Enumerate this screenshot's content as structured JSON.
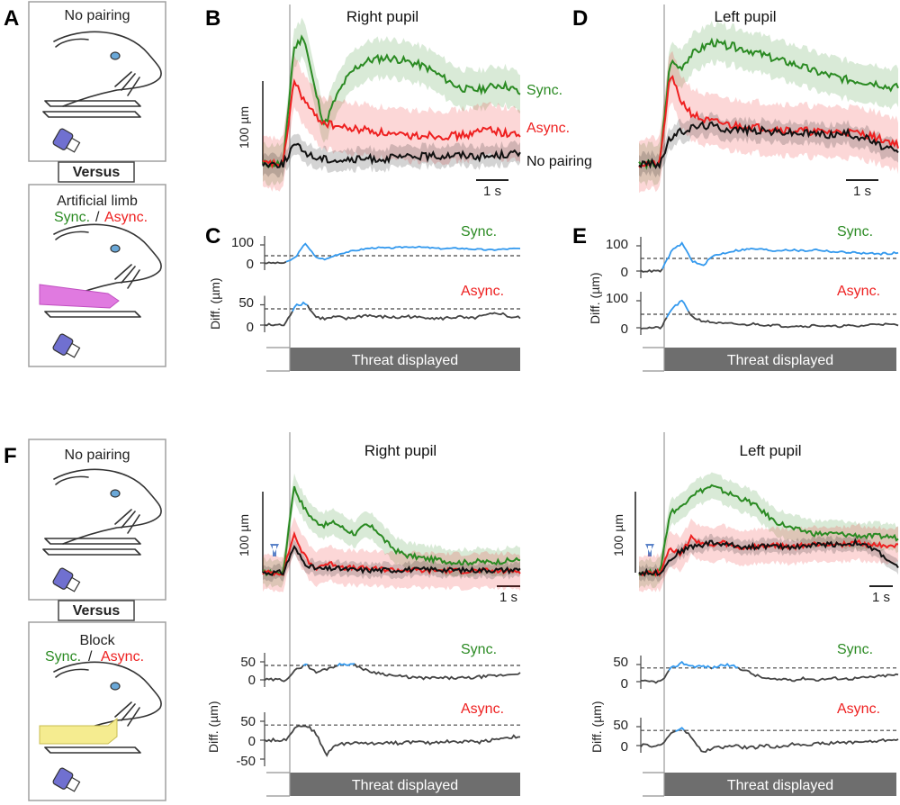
{
  "panel_letters": {
    "A": "A",
    "B": "B",
    "C": "C",
    "D": "D",
    "E": "E",
    "F": "F"
  },
  "schematic_top": {
    "no_pairing": "No pairing",
    "versus": "Versus",
    "condition_label": "Artificial limb",
    "sync": "Sync.",
    "slash": "/",
    "async": "Async."
  },
  "schematic_bottom": {
    "no_pairing": "No pairing",
    "versus": "Versus",
    "condition_label": "Block",
    "sync": "Sync.",
    "slash": "/",
    "async": "Async."
  },
  "colors": {
    "sync": "#2a8a22",
    "async": "#ee2020",
    "no_pairing": "#111111",
    "diff_signif": "#3399ee",
    "threat_bar": "#6e6e6e",
    "limb": "#e07ae0",
    "block": "#f5ec90"
  },
  "common_labels": {
    "scale_100um": "100 µm",
    "scale_1s": "1 s",
    "diff_ylabel": "Diff. (µm)",
    "threat": "Threat displayed"
  },
  "chart_data": [
    {
      "id": "B",
      "type": "line",
      "title": "Right pupil",
      "series": [
        {
          "name": "Sync.",
          "color": "#2a8a22",
          "values": [
            0,
            0,
            0,
            0.9,
            1.0,
            0.6,
            0.3,
            0.5,
            0.65,
            0.75,
            0.8,
            0.82,
            0.83,
            0.82,
            0.8,
            0.78,
            0.75,
            0.7,
            0.65,
            0.6,
            0.58,
            0.58,
            0.6,
            0.62,
            0.6,
            0.55
          ]
        },
        {
          "name": "Async.",
          "color": "#ee2020",
          "values": [
            0,
            0,
            0,
            0.65,
            0.5,
            0.38,
            0.32,
            0.3,
            0.28,
            0.27,
            0.27,
            0.25,
            0.24,
            0.22,
            0.22,
            0.22,
            0.23,
            0.22,
            0.22,
            0.22,
            0.23,
            0.25,
            0.28,
            0.25,
            0.23,
            0.24
          ]
        },
        {
          "name": "No pairing",
          "color": "#111111",
          "values": [
            0,
            0,
            0,
            0.15,
            0.1,
            0.05,
            0.04,
            0.03,
            0.03,
            0.03,
            0.04,
            0.04,
            0.04,
            0.05,
            0.05,
            0.06,
            0.06,
            0.06,
            0.07,
            0.07,
            0.07,
            0.06,
            0.06,
            0.07,
            0.08,
            0.08
          ]
        }
      ]
    },
    {
      "id": "D",
      "type": "line",
      "title": "Left pupil",
      "series": [
        {
          "name": "Sync.",
          "color": "#2a8a22",
          "values": [
            0,
            0,
            0,
            0.8,
            0.75,
            0.85,
            0.9,
            0.95,
            0.93,
            0.92,
            0.9,
            0.88,
            0.85,
            0.82,
            0.8,
            0.78,
            0.75,
            0.72,
            0.7,
            0.68,
            0.66,
            0.65,
            0.64,
            0.63,
            0.6,
            0.6
          ]
        },
        {
          "name": "Async.",
          "color": "#ee2020",
          "values": [
            0,
            0,
            0,
            0.7,
            0.5,
            0.4,
            0.35,
            0.33,
            0.32,
            0.3,
            0.3,
            0.29,
            0.28,
            0.28,
            0.27,
            0.26,
            0.26,
            0.25,
            0.25,
            0.25,
            0.25,
            0.24,
            0.23,
            0.2,
            0.18,
            0.15
          ]
        },
        {
          "name": "No pairing",
          "color": "#111111",
          "values": [
            0,
            0,
            0,
            0.2,
            0.25,
            0.28,
            0.3,
            0.3,
            0.28,
            0.27,
            0.27,
            0.26,
            0.26,
            0.25,
            0.25,
            0.24,
            0.24,
            0.24,
            0.23,
            0.23,
            0.24,
            0.22,
            0.2,
            0.15,
            0.12,
            0.08
          ]
        }
      ]
    },
    {
      "id": "C",
      "type": "line",
      "subplots": [
        {
          "label": "Sync.",
          "yticks": [
            0,
            100
          ],
          "threshold": 40,
          "values": [
            0,
            0,
            0,
            30,
            110,
            30,
            20,
            45,
            60,
            70,
            80,
            85,
            82,
            85,
            90,
            88,
            85,
            80,
            80,
            82,
            78,
            75,
            72,
            75,
            78,
            80
          ]
        },
        {
          "label": "Async.",
          "yticks": [
            0,
            50
          ],
          "threshold": 40,
          "values": [
            0,
            0,
            0,
            50,
            55,
            20,
            15,
            20,
            15,
            20,
            25,
            20,
            20,
            18,
            22,
            18,
            20,
            15,
            18,
            20,
            15,
            20,
            25,
            30,
            20,
            18
          ]
        }
      ]
    },
    {
      "id": "E",
      "type": "line",
      "subplots": [
        {
          "label": "Sync.",
          "yticks": [
            0,
            100
          ],
          "threshold": 50,
          "values": [
            0,
            0,
            0,
            80,
            110,
            40,
            20,
            60,
            70,
            80,
            85,
            88,
            85,
            80,
            85,
            82,
            80,
            85,
            80,
            75,
            75,
            72,
            70,
            68,
            70,
            72
          ]
        },
        {
          "label": "Async.",
          "yticks": [
            0,
            100
          ],
          "threshold": 50,
          "values": [
            0,
            0,
            0,
            70,
            100,
            40,
            25,
            20,
            15,
            15,
            10,
            15,
            10,
            10,
            5,
            8,
            5,
            10,
            5,
            5,
            8,
            5,
            10,
            15,
            12,
            10
          ]
        }
      ]
    },
    {
      "id": "F-right",
      "type": "line",
      "title": "Right pupil",
      "series": [
        {
          "name": "Sync.",
          "color": "#2a8a22",
          "values": [
            0,
            0,
            0,
            1.0,
            0.75,
            0.6,
            0.55,
            0.58,
            0.5,
            0.45,
            0.55,
            0.5,
            0.35,
            0.25,
            0.2,
            0.18,
            0.16,
            0.15,
            0.13,
            0.12,
            0.12,
            0.13,
            0.12,
            0.13,
            0.14,
            0.15
          ]
        },
        {
          "name": "Async.",
          "color": "#ee2020",
          "values": [
            0,
            0,
            0,
            0.45,
            0.2,
            0.05,
            0.1,
            0.1,
            0.06,
            0.05,
            0.05,
            0.04,
            0.04,
            0.03,
            0.03,
            0.03,
            0.02,
            0.03,
            0.02,
            0.02,
            0.02,
            0.02,
            0.02,
            0.02,
            0.02,
            0.02
          ]
        },
        {
          "name": "No pairing",
          "color": "#111111",
          "values": [
            0,
            0,
            0,
            0.3,
            0.12,
            0.05,
            0.04,
            0.05,
            0.04,
            0.03,
            0.03,
            0.03,
            0.03,
            0.03,
            0.04,
            0.03,
            0.04,
            0.04,
            0.03,
            0.03,
            0.03,
            0.03,
            0.03,
            0.03,
            0.03,
            0.04
          ]
        }
      ]
    },
    {
      "id": "F-left",
      "type": "line",
      "title": "Left pupil",
      "series": [
        {
          "name": "Sync.",
          "color": "#2a8a22",
          "values": [
            0,
            0,
            0,
            0.7,
            0.75,
            0.9,
            0.95,
            1.0,
            0.95,
            0.9,
            0.85,
            0.8,
            0.7,
            0.6,
            0.55,
            0.5,
            0.48,
            0.45,
            0.45,
            0.45,
            0.44,
            0.43,
            0.42,
            0.42,
            0.42,
            0.4
          ]
        },
        {
          "name": "Async.",
          "color": "#ee2020",
          "values": [
            0,
            0,
            0,
            0.3,
            0.2,
            0.4,
            0.35,
            0.3,
            0.35,
            0.3,
            0.28,
            0.3,
            0.3,
            0.32,
            0.3,
            0.3,
            0.32,
            0.33,
            0.34,
            0.33,
            0.33,
            0.35,
            0.33,
            0.32,
            0.32,
            0.3
          ]
        },
        {
          "name": "No pairing",
          "color": "#111111",
          "values": [
            0,
            0,
            0,
            0.15,
            0.25,
            0.3,
            0.32,
            0.35,
            0.33,
            0.32,
            0.3,
            0.3,
            0.31,
            0.3,
            0.3,
            0.3,
            0.31,
            0.32,
            0.33,
            0.33,
            0.33,
            0.35,
            0.3,
            0.25,
            0.15,
            0.05
          ]
        }
      ]
    },
    {
      "id": "F-right-diff",
      "type": "line",
      "subplots": [
        {
          "label": "Sync.",
          "yticks": [
            0,
            50
          ],
          "threshold": 40,
          "values": [
            0,
            0,
            0,
            25,
            45,
            20,
            30,
            40,
            45,
            40,
            25,
            20,
            15,
            10,
            8,
            5,
            5,
            5,
            5,
            5,
            5,
            8,
            10,
            12,
            15,
            20
          ]
        },
        {
          "label": "Async.",
          "yticks": [
            -50,
            0,
            50
          ],
          "threshold": 40,
          "values": [
            0,
            0,
            0,
            35,
            40,
            20,
            -40,
            -10,
            -10,
            -5,
            -10,
            -8,
            -5,
            -8,
            -5,
            -5,
            -8,
            -5,
            -3,
            -5,
            -3,
            -5,
            0,
            5,
            8,
            10
          ]
        }
      ]
    },
    {
      "id": "F-left-diff",
      "type": "line",
      "subplots": [
        {
          "label": "Sync.",
          "yticks": [
            0,
            50
          ],
          "threshold": 40,
          "values": [
            0,
            0,
            0,
            40,
            55,
            45,
            45,
            40,
            50,
            45,
            35,
            20,
            10,
            5,
            8,
            5,
            10,
            5,
            8,
            10,
            8,
            10,
            12,
            15,
            18,
            20
          ]
        },
        {
          "label": "Async.",
          "yticks": [
            0,
            50
          ],
          "threshold": 40,
          "values": [
            0,
            0,
            0,
            35,
            45,
            20,
            -20,
            -5,
            -5,
            0,
            -5,
            -5,
            0,
            -5,
            0,
            5,
            3,
            5,
            5,
            8,
            8,
            10,
            10,
            12,
            15,
            18
          ]
        }
      ]
    }
  ]
}
